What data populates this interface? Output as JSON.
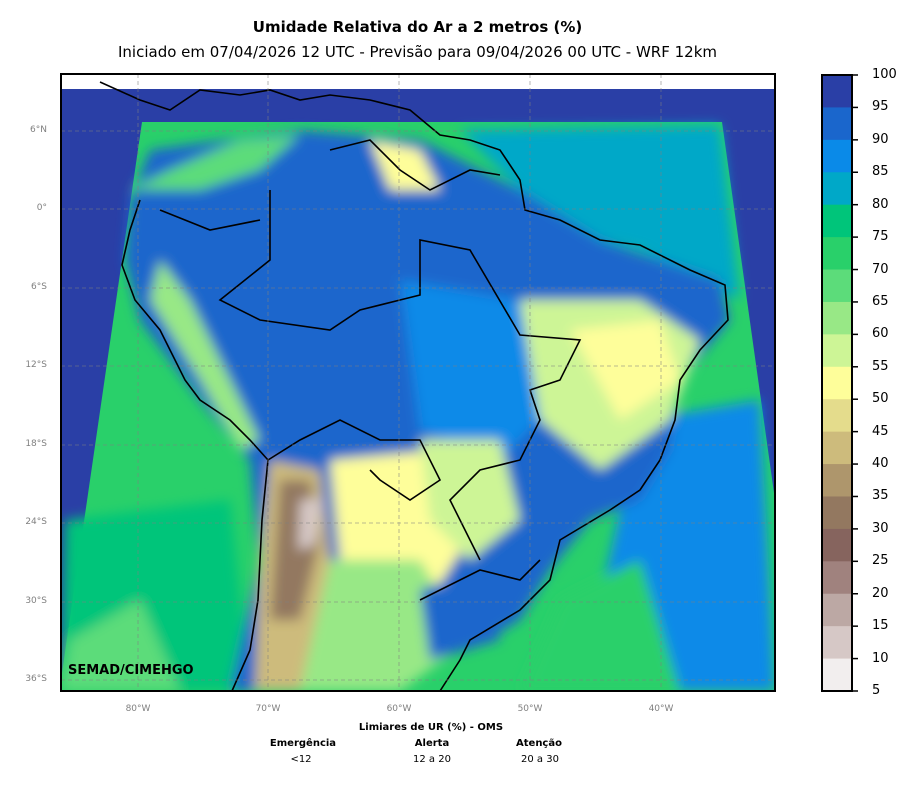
{
  "title": "Umidade Relativa do Ar a 2 metros (%)",
  "subtitle": "Iniciado em 07/04/2026 12 UTC - Previsão para 09/04/2026 00 UTC - WRF 12km",
  "credit": "SEMAD/CIMEHGO",
  "lat_labels": [
    "6°N",
    "0°",
    "6°S",
    "12°S",
    "18°S",
    "24°S",
    "30°S",
    "36°S"
  ],
  "lon_labels": [
    "80°W",
    "70°W",
    "60°W",
    "50°W",
    "40°W"
  ],
  "colorbar": {
    "ticks": [
      "100",
      "95",
      "90",
      "85",
      "80",
      "75",
      "70",
      "65",
      "60",
      "55",
      "50",
      "45",
      "40",
      "35",
      "30",
      "25",
      "20",
      "15",
      "10",
      "5"
    ],
    "colors": [
      "#2a3fa6",
      "#1a66cc",
      "#0a8ae8",
      "#00a8c8",
      "#00c57a",
      "#29d06a",
      "#5cdc7a",
      "#98e886",
      "#cdf596",
      "#fefe9a",
      "#e4dc8c",
      "#cdbb7c",
      "#ae966c",
      "#937860",
      "#86645e",
      "#a0827e",
      "#bca8a4",
      "#d6c8c6",
      "#f2eeee"
    ]
  },
  "legend": {
    "title": "Limiares de UR (%) - OMS",
    "items": [
      {
        "label": "Emergência",
        "range": "<12"
      },
      {
        "label": "Alerta",
        "range": "12 a 20"
      },
      {
        "label": "Atenção",
        "range": "20 a 30"
      }
    ]
  }
}
